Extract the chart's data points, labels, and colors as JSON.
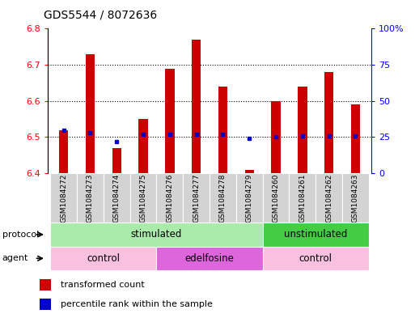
{
  "title": "GDS5544 / 8072636",
  "samples": [
    "GSM1084272",
    "GSM1084273",
    "GSM1084274",
    "GSM1084275",
    "GSM1084276",
    "GSM1084277",
    "GSM1084278",
    "GSM1084279",
    "GSM1084260",
    "GSM1084261",
    "GSM1084262",
    "GSM1084263"
  ],
  "red_values": [
    6.52,
    6.73,
    6.47,
    6.55,
    6.69,
    6.77,
    6.64,
    6.41,
    6.6,
    6.64,
    6.68,
    6.59
  ],
  "blue_percentiles": [
    30,
    28,
    22,
    27,
    27,
    27,
    27,
    24,
    25,
    26,
    26,
    26
  ],
  "ylim_left": [
    6.4,
    6.8
  ],
  "ylim_right": [
    0,
    100
  ],
  "yticks_left": [
    6.4,
    6.5,
    6.6,
    6.7,
    6.8
  ],
  "yticks_right": [
    0,
    25,
    50,
    75,
    100
  ],
  "ytick_labels_right": [
    "0",
    "25",
    "50",
    "75",
    "100%"
  ],
  "bar_color": "#cc0000",
  "dot_color": "#0000cc",
  "bar_bottom": 6.4,
  "bar_width": 0.35,
  "protocol_groups": [
    {
      "label": "stimulated",
      "start": 0,
      "end": 8,
      "color": "#aaeaaa"
    },
    {
      "label": "unstimulated",
      "start": 8,
      "end": 12,
      "color": "#44cc44"
    }
  ],
  "agent_groups": [
    {
      "label": "control",
      "start": 0,
      "end": 4,
      "color": "#f9c0e0"
    },
    {
      "label": "edelfosine",
      "start": 4,
      "end": 8,
      "color": "#dd66dd"
    },
    {
      "label": "control",
      "start": 8,
      "end": 12,
      "color": "#f9c0e0"
    }
  ],
  "legend_red_label": "transformed count",
  "legend_blue_label": "percentile rank within the sample",
  "protocol_label": "protocol",
  "agent_label": "agent",
  "background_color": "#ffffff",
  "title_fontsize": 10,
  "sample_label_fontsize": 6.5,
  "row_label_fontsize": 8,
  "group_label_fontsize": 8.5,
  "legend_fontsize": 8
}
